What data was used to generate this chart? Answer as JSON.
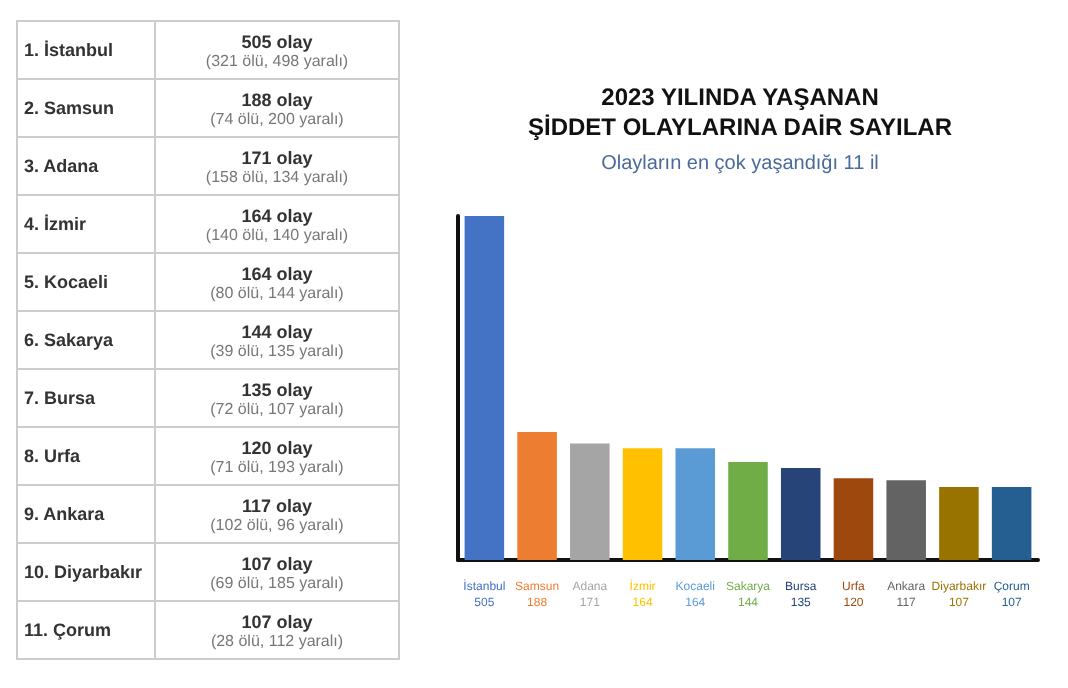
{
  "chart_data": [
    {
      "type": "other",
      "annotations": [
        "1. İstanbul",
        "505 olay",
        "(321 ölü, 498 yaralı)",
        "2. Samsun",
        "188 olay",
        "(74 ölü, 200 yaralı)",
        "3. Adana",
        "171 olay",
        "(158 ölü, 134 yaralı)",
        "4. İzmir",
        "164 olay",
        "(140 ölü, 140 yaralı)",
        "5. Kocaeli",
        "164 olay",
        "(80 ölü, 144 yaralı)",
        "6. Sakarya",
        "144 olay",
        "(39 ölü, 135 yaralı)",
        "7. Bursa",
        "135 olay",
        "(72 ölü, 107 yaralı)",
        "8. Urfa",
        "120 olay",
        "(71 ölü, 193 yaralı)",
        "9. Ankara",
        "117 olay",
        "(102 ölü, 96 yaralı)",
        "10. Diyarbakır",
        "107 olay",
        "(69 ölü, 185 yaralı)",
        "11. Çorum",
        "107 olay",
        "(28 ölü, 112 yaralı)"
      ]
    },
    {
      "type": "bar",
      "title": "2023 YILINDA YAŞANAN\nŞİDDET OLAYLARINA DAİR SAYILAR",
      "subtitle": "Olayların en çok yaşandığı 11 il",
      "categories": [
        "İstanbul",
        "Samsun",
        "Adana",
        "İzmir",
        "Kocaeli",
        "Sakarya",
        "Bursa",
        "Urfa",
        "Ankara",
        "Diyarbakır",
        "Çorum"
      ],
      "values": [
        505,
        188,
        171,
        164,
        164,
        144,
        135,
        120,
        117,
        107,
        107
      ],
      "colors": [
        "#4472c4",
        "#ed7d31",
        "#a5a5a5",
        "#ffc000",
        "#5b9bd5",
        "#70ad47",
        "#264478",
        "#9e480e",
        "#636363",
        "#997300",
        "#255e91"
      ],
      "data_labels": true,
      "tick_labels": "x"
    }
  ]
}
